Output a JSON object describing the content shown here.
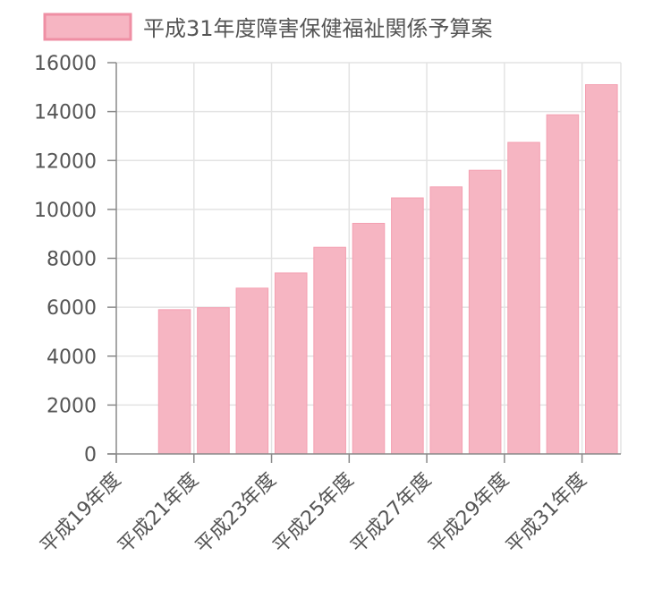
{
  "chart_data": {
    "type": "bar",
    "legend": {
      "label": "平成31年度障害保健福祉関係予算案",
      "placement": "top-center"
    },
    "categories": [
      "平成19年度",
      "平成20年度",
      "平成21年度",
      "平成22年度",
      "平成23年度",
      "平成24年度",
      "平成25年度",
      "平成26年度",
      "平成27年度",
      "平成28年度",
      "平成29年度",
      "平成30年度",
      "平成31年度"
    ],
    "x_tick_labels": [
      "平成19年度",
      "平成21年度",
      "平成23年度",
      "平成25年度",
      "平成27年度",
      "平成29年度",
      "平成31年度"
    ],
    "series": [
      {
        "name": "平成31年度障害保健福祉関係予算案",
        "values": [
          null,
          5900,
          5980,
          6780,
          7400,
          8450,
          9430,
          10470,
          10920,
          11600,
          12740,
          13870,
          15100
        ]
      }
    ],
    "ylim": [
      0,
      16000
    ],
    "y_ticks": [
      0,
      2000,
      4000,
      6000,
      8000,
      10000,
      12000,
      14000,
      16000
    ],
    "grid": true,
    "colors": {
      "bar_fill": "#f6b5c2",
      "bar_stroke": "#f49fb1",
      "legend_stroke": "#ef8fa4"
    }
  }
}
